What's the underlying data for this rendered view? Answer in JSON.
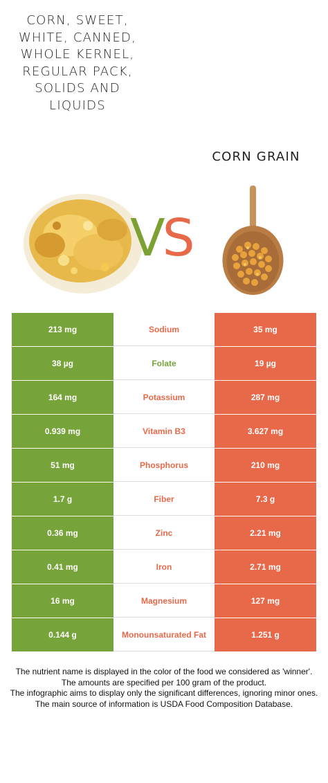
{
  "foods": {
    "left_name": "Corn, sweet, white, canned, whole kernel, regular pack, solids and liquids",
    "right_name": "Corn grain",
    "left_color": "#76a33a",
    "right_color": "#e8694a"
  },
  "vs": {
    "v": "V",
    "s": "S"
  },
  "chart_data": {
    "type": "table",
    "columns": [
      "Corn, sweet, white, canned, whole kernel, regular pack, solids and liquids",
      "Nutrient",
      "Corn grain"
    ],
    "rows": [
      {
        "nutrient": "Sodium",
        "left": "213 mg",
        "right": "35 mg",
        "winner": "right"
      },
      {
        "nutrient": "Folate",
        "left": "38 µg",
        "right": "19 µg",
        "winner": "left"
      },
      {
        "nutrient": "Potassium",
        "left": "164 mg",
        "right": "287 mg",
        "winner": "right"
      },
      {
        "nutrient": "Vitamin B3",
        "left": "0.939 mg",
        "right": "3.627 mg",
        "winner": "right"
      },
      {
        "nutrient": "Phosphorus",
        "left": "51 mg",
        "right": "210 mg",
        "winner": "right"
      },
      {
        "nutrient": "Fiber",
        "left": "1.7 g",
        "right": "7.3 g",
        "winner": "right"
      },
      {
        "nutrient": "Zinc",
        "left": "0.36 mg",
        "right": "2.21 mg",
        "winner": "right"
      },
      {
        "nutrient": "Iron",
        "left": "0.41 mg",
        "right": "2.71 mg",
        "winner": "right"
      },
      {
        "nutrient": "Magnesium",
        "left": "16 mg",
        "right": "127 mg",
        "winner": "right"
      },
      {
        "nutrient": "Monounsaturated Fat",
        "left": "0.144 g",
        "right": "1.251 g",
        "winner": "right"
      }
    ]
  },
  "footer": {
    "line1": "The nutrient name is displayed in the color of the food we considered as 'winner'.",
    "line2": "The amounts are specified per 100 gram of the product.",
    "line3": "The infographic aims to display only the significant differences, ignoring minor ones.",
    "line4": "The main source of information is USDA Food Composition Database."
  }
}
